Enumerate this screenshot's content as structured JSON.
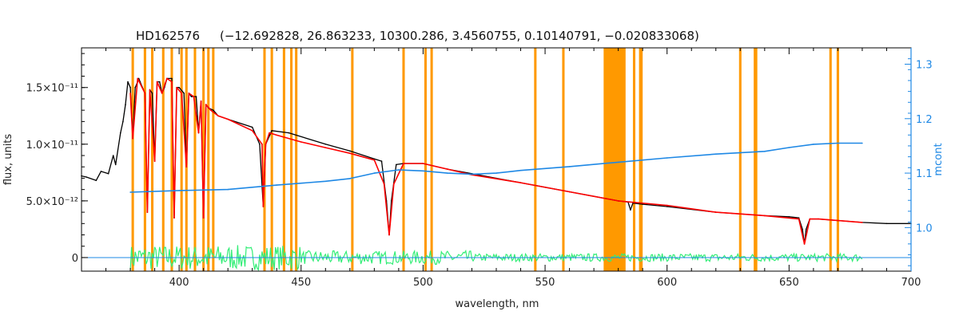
{
  "chart_data": {
    "type": "line",
    "title": "HD162576",
    "subtitle": "(−12.692828, 26.863233, 10300.286, 3.4560755, 0.10140791, −0.020833068)",
    "xlabel": "wavelength, nm",
    "ylabel": "flux, units",
    "y2label": "mcont",
    "xlim": [
      360,
      700
    ],
    "ylim": [
      -1.2e-12,
      1.85e-11
    ],
    "y2lim": [
      0.92,
      1.33
    ],
    "x_ticks": [
      400,
      450,
      500,
      550,
      600,
      650,
      700
    ],
    "x_tick_labels": [
      "400",
      "450",
      "500",
      "550",
      "600",
      "650",
      "700"
    ],
    "y_ticks": [
      0,
      5e-12,
      1e-11,
      1.5e-11
    ],
    "y_tick_labels": [
      "0",
      "5.0×10⁻¹²",
      "1.0×10⁻¹¹",
      "1.5×10⁻¹¹"
    ],
    "y2_ticks": [
      1.0,
      1.1,
      1.2,
      1.3
    ],
    "y2_tick_labels": [
      "1.0",
      "1.1",
      "1.2",
      "1.3"
    ],
    "masked_bands": [
      [
        380.5,
        381.5
      ],
      [
        385.5,
        386.5
      ],
      [
        388.5,
        389.5
      ],
      [
        393.0,
        394.0
      ],
      [
        396.5,
        397.5
      ],
      [
        400.5,
        401.5
      ],
      [
        402.5,
        403.5
      ],
      [
        406.0,
        407.0
      ],
      [
        409.5,
        410.5
      ],
      [
        411.5,
        412.5
      ],
      [
        413.5,
        414.5
      ],
      [
        434.5,
        435.5
      ],
      [
        437.5,
        438.5
      ],
      [
        442.5,
        443.5
      ],
      [
        445.5,
        446.5
      ],
      [
        447.5,
        448.5
      ],
      [
        470.5,
        471.5
      ],
      [
        491.5,
        492.5
      ],
      [
        500.5,
        501.5
      ],
      [
        503.0,
        504.0
      ],
      [
        545.5,
        546.5
      ],
      [
        557.0,
        558.0
      ],
      [
        574.0,
        583.0
      ],
      [
        586.0,
        587.0
      ],
      [
        588.5,
        590.0
      ],
      [
        629.5,
        630.5
      ],
      [
        635.5,
        637.0
      ],
      [
        666.5,
        667.5
      ],
      [
        669.5,
        670.5
      ]
    ],
    "series": [
      {
        "color": "#000000",
        "axis": "left",
        "x": [
          360,
          362,
          366,
          368,
          371,
          373,
          374,
          376,
          377,
          378,
          379,
          380,
          381,
          382,
          383,
          383.5,
          384,
          386,
          387,
          388,
          389,
          390,
          391,
          392,
          393,
          394,
          395,
          397,
          398,
          399,
          400,
          402,
          403,
          404,
          405,
          407,
          408,
          409,
          410,
          411,
          412,
          414,
          416,
          420,
          430,
          433,
          434.5,
          435.5,
          438,
          445,
          460,
          470,
          480,
          483,
          485,
          486.1,
          487,
          489,
          492,
          500,
          510,
          520,
          530,
          540,
          550,
          560,
          570,
          575,
          580,
          584,
          585,
          586,
          590,
          600,
          620,
          640,
          650,
          654,
          655.5,
          656.3,
          657,
          658.5,
          662,
          680,
          690,
          700
        ],
        "y": [
          7.2e-12,
          7.1e-12,
          6.8e-12,
          7.6e-12,
          7.4e-12,
          9e-12,
          8.2e-12,
          1.1e-11,
          1.2e-11,
          1.35e-11,
          1.55e-11,
          1.5e-11,
          1.05e-11,
          1.5e-11,
          1.55e-11,
          1.58e-11,
          1.55e-11,
          1.45e-11,
          4e-12,
          1.48e-11,
          1.45e-11,
          8.5e-12,
          1.55e-11,
          1.55e-11,
          1.45e-11,
          1.5e-11,
          1.58e-11,
          1.58e-11,
          3.5e-12,
          1.5e-11,
          1.5e-11,
          1.45e-11,
          8e-12,
          1.45e-11,
          1.42e-11,
          1.42e-11,
          1.1e-11,
          1.38e-11,
          3.5e-12,
          1.35e-11,
          1.32e-11,
          1.3e-11,
          1.25e-11,
          1.22e-11,
          1.15e-11,
          1e-11,
          4.5e-12,
          1e-11,
          1.12e-11,
          1.1e-11,
          1e-11,
          9.4e-12,
          8.7e-12,
          8.5e-12,
          5e-12,
          2e-12,
          5e-12,
          8.2e-12,
          8.3e-12,
          8.3e-12,
          7.8e-12,
          7.4e-12,
          7e-12,
          6.6e-12,
          6.2e-12,
          5.8e-12,
          5.4e-12,
          5.2e-12,
          5e-12,
          4.9e-12,
          4.2e-12,
          4.8e-12,
          4.7e-12,
          4.5e-12,
          4e-12,
          3.7e-12,
          3.6e-12,
          3.5e-12,
          2.5e-12,
          1.2e-12,
          2.5e-12,
          3.4e-12,
          3.4e-12,
          3.1e-12,
          3e-12,
          3e-12
        ]
      },
      {
        "color": "#ff0000",
        "axis": "left",
        "x": [
          380,
          381,
          383,
          386,
          387,
          388,
          390,
          391,
          393,
          395,
          397,
          398,
          399,
          401,
          403,
          404,
          406,
          408,
          409,
          410,
          411,
          413,
          416,
          420,
          430,
          434,
          434.5,
          435.5,
          437,
          440,
          450,
          460,
          470,
          480,
          484,
          486.1,
          488,
          492,
          500,
          510,
          520,
          540,
          560,
          580,
          600,
          620,
          640,
          654,
          656.3,
          658.5,
          662,
          680
        ],
        "y": [
          1.45e-11,
          1.05e-11,
          1.58e-11,
          1.45e-11,
          4e-12,
          1.48e-11,
          8.5e-12,
          1.55e-11,
          1.45e-11,
          1.58e-11,
          1.55e-11,
          3.5e-12,
          1.5e-11,
          1.45e-11,
          8e-12,
          1.45e-11,
          1.42e-11,
          1.1e-11,
          1.38e-11,
          3.5e-12,
          1.35e-11,
          1.3e-11,
          1.25e-11,
          1.22e-11,
          1.12e-11,
          1e-11,
          4.5e-12,
          1e-11,
          1.1e-11,
          1.08e-11,
          1.02e-11,
          9.7e-12,
          9.2e-12,
          8.6e-12,
          6.5e-12,
          2e-12,
          6.5e-12,
          8.3e-12,
          8.3e-12,
          7.8e-12,
          7.3e-12,
          6.6e-12,
          5.8e-12,
          5e-12,
          4.6e-12,
          4e-12,
          3.7e-12,
          3.4e-12,
          1.2e-12,
          3.4e-12,
          3.4e-12,
          3.1e-12
        ]
      },
      {
        "color": "#1e88e5",
        "axis": "right",
        "x": [
          380,
          400,
          420,
          440,
          460,
          470,
          480,
          490,
          500,
          510,
          520,
          530,
          540,
          560,
          580,
          600,
          620,
          640,
          650,
          660,
          670,
          680
        ],
        "y": [
          1.065,
          1.068,
          1.07,
          1.078,
          1.085,
          1.09,
          1.1,
          1.106,
          1.104,
          1.1,
          1.098,
          1.1,
          1.105,
          1.112,
          1.12,
          1.128,
          1.135,
          1.14,
          1.147,
          1.153,
          1.155,
          1.155
        ]
      }
    ]
  }
}
